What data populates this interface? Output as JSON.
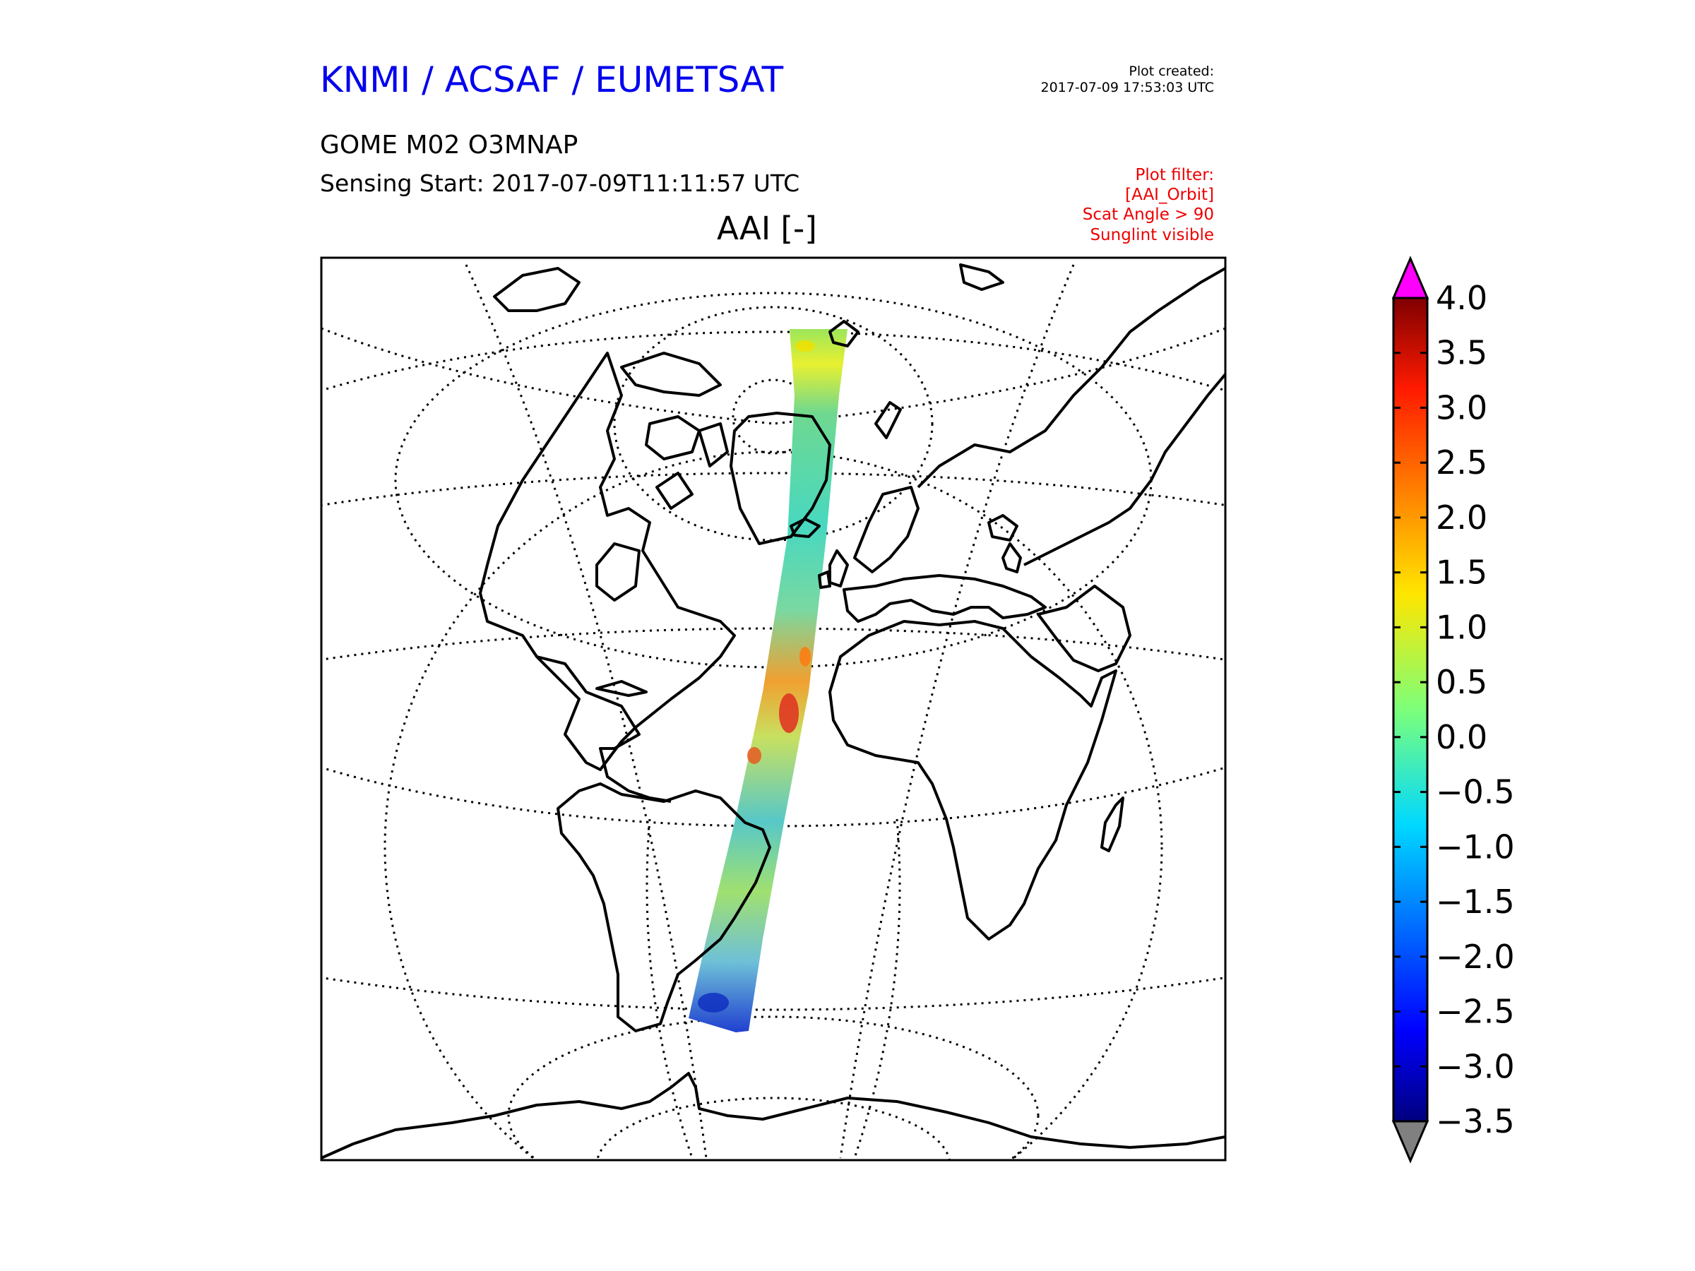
{
  "header": {
    "org_title": "KNMI / ACSAF / EUMETSAT",
    "plot_created_label": "Plot created:",
    "plot_created_time": "2017-07-09 17:53:03 UTC",
    "product": "GOME M02 O3MNAP",
    "sensing_start": "Sensing Start: 2017-07-09T11:11:57 UTC"
  },
  "filter": {
    "lines": [
      "Plot filter:",
      "[AAI_Orbit]",
      "Scat Angle > 90",
      "Sunglint visible"
    ],
    "color": "#ee0000"
  },
  "map": {
    "variable_title": "AAI [-]",
    "projection": "orthographic (north-atlantic view)",
    "graticule": "dotted",
    "coastlines": "black"
  },
  "colorbar": {
    "colormap": "jet",
    "min": -3.5,
    "max": 4.0,
    "ticks": [
      "4.0",
      "3.5",
      "3.0",
      "2.5",
      "2.0",
      "1.5",
      "1.0",
      "0.5",
      "0.0",
      "−0.5",
      "−1.0",
      "−1.5",
      "−2.0",
      "−2.5",
      "−3.0",
      "−3.5"
    ],
    "extend_max_color": "#ff00ff",
    "extend_min_color": "#808080"
  }
}
